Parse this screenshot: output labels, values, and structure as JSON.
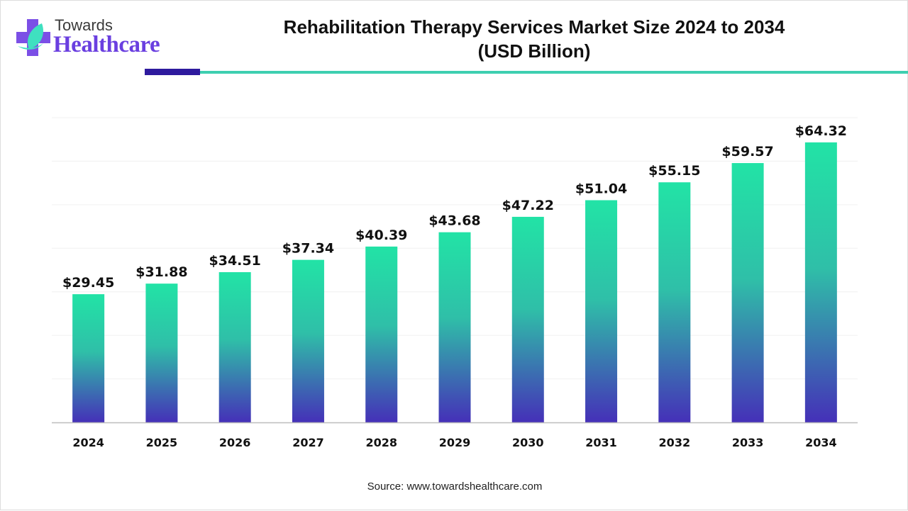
{
  "brand": {
    "line1": "Towards",
    "line2": "Healthcare"
  },
  "colors": {
    "bar_top": "#22e3a6",
    "bar_bottom": "#4530b8",
    "accent_dark": "#2e1a9e",
    "accent_teal": "#3ecfb0",
    "brand_purple": "#6a3fe0"
  },
  "source": "Source: www.towardshealthcare.com",
  "chart_data": {
    "type": "bar",
    "title": "Rehabilitation Therapy Services Market Size 2024 to 2034 (USD Billion)",
    "title_line1": "Rehabilitation Therapy Services Market Size 2024 to 2034",
    "title_line2": "(USD Billion)",
    "categories": [
      "2024",
      "2025",
      "2026",
      "2027",
      "2028",
      "2029",
      "2030",
      "2031",
      "2032",
      "2033",
      "2034"
    ],
    "values": [
      29.45,
      31.88,
      34.51,
      37.34,
      40.39,
      43.68,
      47.22,
      51.04,
      55.15,
      59.57,
      64.32
    ],
    "labels": [
      "$29.45",
      "$31.88",
      "$34.51",
      "$37.34",
      "$40.39",
      "$43.68",
      "$47.22",
      "$51.04",
      "$55.15",
      "$59.57",
      "$64.32"
    ],
    "xlabel": "",
    "ylabel": "",
    "ylim": [
      0,
      70
    ],
    "grid": true,
    "y_axis_labels": false
  }
}
